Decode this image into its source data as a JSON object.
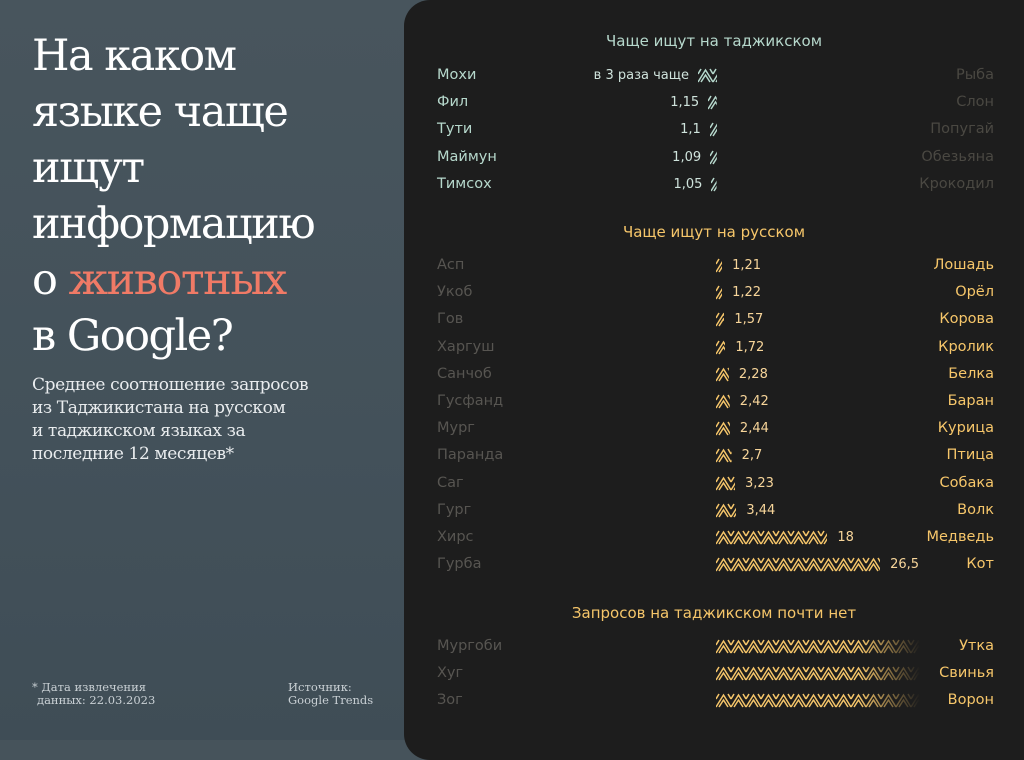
{
  "header": {
    "title_lines": [
      "На каком",
      "языке чаще",
      "ищут",
      "информацию"
    ],
    "title_pre": "о ",
    "title_accent": "животных",
    "title_last": "в Google?",
    "subtitle_lines": [
      "Среднее соотношение запросов",
      "из Таджикистана на русском",
      "и таджикском языках за",
      "последние 12 месяцев*"
    ]
  },
  "footer": {
    "note_line1": "* Дата извлечения",
    "note_line2": "данных: 22.03.2023",
    "source_line1": "Источник:",
    "source_line2": "Google Trends"
  },
  "colors": {
    "tajik_accent": "#b6d8cc",
    "russian_accent": "#f6c66a",
    "title_accent": "#f07a66",
    "panel_bg": "#1d1d1d"
  },
  "chart_data": {
    "type": "bar",
    "sections": [
      {
        "title": "Чаще ищут на таджикском",
        "kind": "tajik",
        "rows": [
          {
            "tajik": "Мохи",
            "russian": "Рыба",
            "value": 3,
            "label": "в 3 раза чаще"
          },
          {
            "tajik": "Фил",
            "russian": "Слон",
            "value": 1.15,
            "label": "1,15"
          },
          {
            "tajik": "Тути",
            "russian": "Попугай",
            "value": 1.1,
            "label": "1,1"
          },
          {
            "tajik": "Маймун",
            "russian": "Обезьяна",
            "value": 1.09,
            "label": "1,09"
          },
          {
            "tajik": "Тимсох",
            "russian": "Крокодил",
            "value": 1.05,
            "label": "1,05"
          }
        ]
      },
      {
        "title": "Чаще ищут на русском",
        "kind": "russian",
        "rows": [
          {
            "tajik": "Асп",
            "russian": "Лошадь",
            "value": 1.21,
            "label": "1,21"
          },
          {
            "tajik": "Укоб",
            "russian": "Орёл",
            "value": 1.22,
            "label": "1,22"
          },
          {
            "tajik": "Гов",
            "russian": "Корова",
            "value": 1.57,
            "label": "1,57"
          },
          {
            "tajik": "Харгуш",
            "russian": "Кролик",
            "value": 1.72,
            "label": "1,72"
          },
          {
            "tajik": "Санчоб",
            "russian": "Белка",
            "value": 2.28,
            "label": "2,28"
          },
          {
            "tajik": "Гусфанд",
            "russian": "Баран",
            "value": 2.42,
            "label": "2,42"
          },
          {
            "tajik": "Мург",
            "russian": "Курица",
            "value": 2.44,
            "label": "2,44"
          },
          {
            "tajik": "Паранда",
            "russian": "Птица",
            "value": 2.7,
            "label": "2,7"
          },
          {
            "tajik": "Саг",
            "russian": "Собака",
            "value": 3.23,
            "label": "3,23"
          },
          {
            "tajik": "Гург",
            "russian": "Волк",
            "value": 3.44,
            "label": "3,44"
          },
          {
            "tajik": "Хирс",
            "russian": "Медведь",
            "value": 18,
            "label": "18"
          },
          {
            "tajik": "Гурба",
            "russian": "Кот",
            "value": 26.5,
            "label": "26,5"
          }
        ]
      },
      {
        "title": "Запросов на таджикском почти нет",
        "kind": "none",
        "rows": [
          {
            "tajik": "Мургоби",
            "russian": "Утка"
          },
          {
            "tajik": "Хуг",
            "russian": "Свинья"
          },
          {
            "tajik": "Зог",
            "russian": "Ворон"
          }
        ]
      }
    ]
  }
}
